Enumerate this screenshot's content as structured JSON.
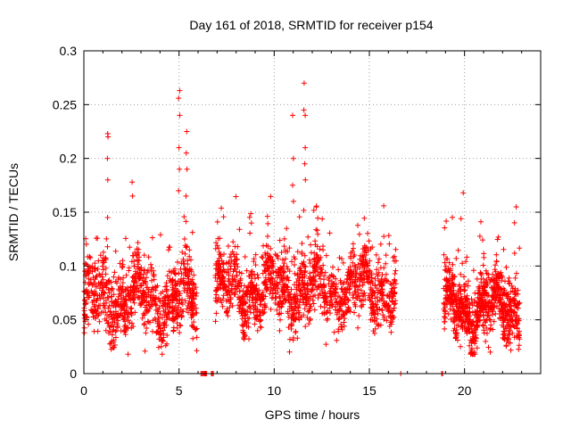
{
  "chart_data": {
    "type": "scatter",
    "title": "Day 161 of 2018, SRMTID for receiver p154",
    "xlabel": "GPS time / hours",
    "ylabel": "SRMTID / TECUs",
    "xlim": [
      0,
      24
    ],
    "ylim": [
      0,
      0.3
    ],
    "xticks": [
      0,
      5,
      10,
      15,
      20
    ],
    "xtick_labels": [
      "0",
      "5",
      "10",
      "15",
      "20"
    ],
    "yticks": [
      0,
      0.05,
      0.1,
      0.15,
      0.2,
      0.25,
      0.3
    ],
    "ytick_labels": [
      "0",
      "0.05",
      "0.1",
      "0.15",
      "0.2",
      "0.25",
      "0.3"
    ],
    "grid": true,
    "marker": "+",
    "color": "#ff0000",
    "segments": [
      {
        "x_start": 0.0,
        "x_end": 5.95,
        "base": 0.068,
        "spread": 0.028,
        "count": 900
      },
      {
        "x_start": 6.9,
        "x_end": 16.4,
        "base": 0.078,
        "spread": 0.026,
        "count": 1400
      },
      {
        "x_start": 18.9,
        "x_end": 22.9,
        "base": 0.062,
        "spread": 0.026,
        "count": 800
      }
    ],
    "spikes": [
      {
        "x": 1.25,
        "y": [
          0.22,
          0.223,
          0.2,
          0.18,
          0.145
        ]
      },
      {
        "x": 5.0,
        "y": [
          0.263,
          0.256,
          0.24,
          0.21,
          0.19,
          0.17
        ]
      },
      {
        "x": 5.4,
        "y": [
          0.225,
          0.205,
          0.19,
          0.165
        ]
      },
      {
        "x": 11.0,
        "y": [
          0.24,
          0.2,
          0.175,
          0.16
        ]
      },
      {
        "x": 11.6,
        "y": [
          0.27,
          0.245,
          0.24,
          0.21,
          0.195,
          0.18
        ]
      },
      {
        "x": 2.55,
        "y": [
          0.178,
          0.165
        ]
      },
      {
        "x": 19.9,
        "y": [
          0.168
        ]
      },
      {
        "x": 22.7,
        "y": [
          0.155
        ]
      }
    ],
    "zero_points": [
      6.15,
      6.2,
      6.25,
      6.3,
      6.35,
      6.4,
      6.45,
      6.7,
      6.75,
      6.8,
      16.65,
      18.8,
      18.85
    ]
  }
}
